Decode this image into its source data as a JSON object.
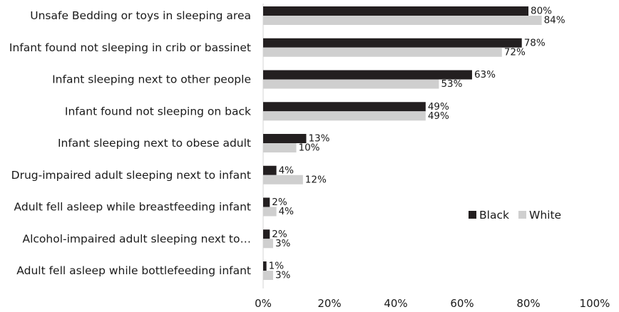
{
  "chart_data": {
    "type": "bar",
    "orientation": "horizontal",
    "title": "",
    "xlabel": "",
    "ylabel": "",
    "xlim": [
      0,
      100
    ],
    "x_ticks": [
      "0%",
      "20%",
      "40%",
      "60%",
      "80%",
      "100%"
    ],
    "grid": false,
    "legend_position": "right",
    "categories": [
      "Unsafe Bedding or toys in sleeping area",
      "Infant found not sleeping in crib or bassinet",
      "Infant sleeping next to other people",
      "Infant found not sleeping on back",
      "Infant sleeping next to obese adult",
      "Drug-impaired adult sleeping next to infant",
      "Adult fell asleep while breastfeeding infant",
      "Alcohol-impaired adult sleeping next to…",
      "Adult fell asleep while bottlefeeding infant"
    ],
    "series": [
      {
        "name": "Black",
        "color": "#231f20",
        "values": [
          80,
          78,
          63,
          49,
          13,
          4,
          2,
          2,
          1
        ],
        "labels": [
          "80%",
          "78%",
          "63%",
          "49%",
          "13%",
          "4%",
          "2%",
          "2%",
          "1%"
        ]
      },
      {
        "name": "White",
        "color": "#cfcfcf",
        "values": [
          84,
          72,
          53,
          49,
          10,
          12,
          4,
          3,
          3
        ],
        "labels": [
          "84%",
          "72%",
          "53%",
          "49%",
          "10%",
          "12%",
          "4%",
          "3%",
          "3%"
        ]
      }
    ]
  }
}
